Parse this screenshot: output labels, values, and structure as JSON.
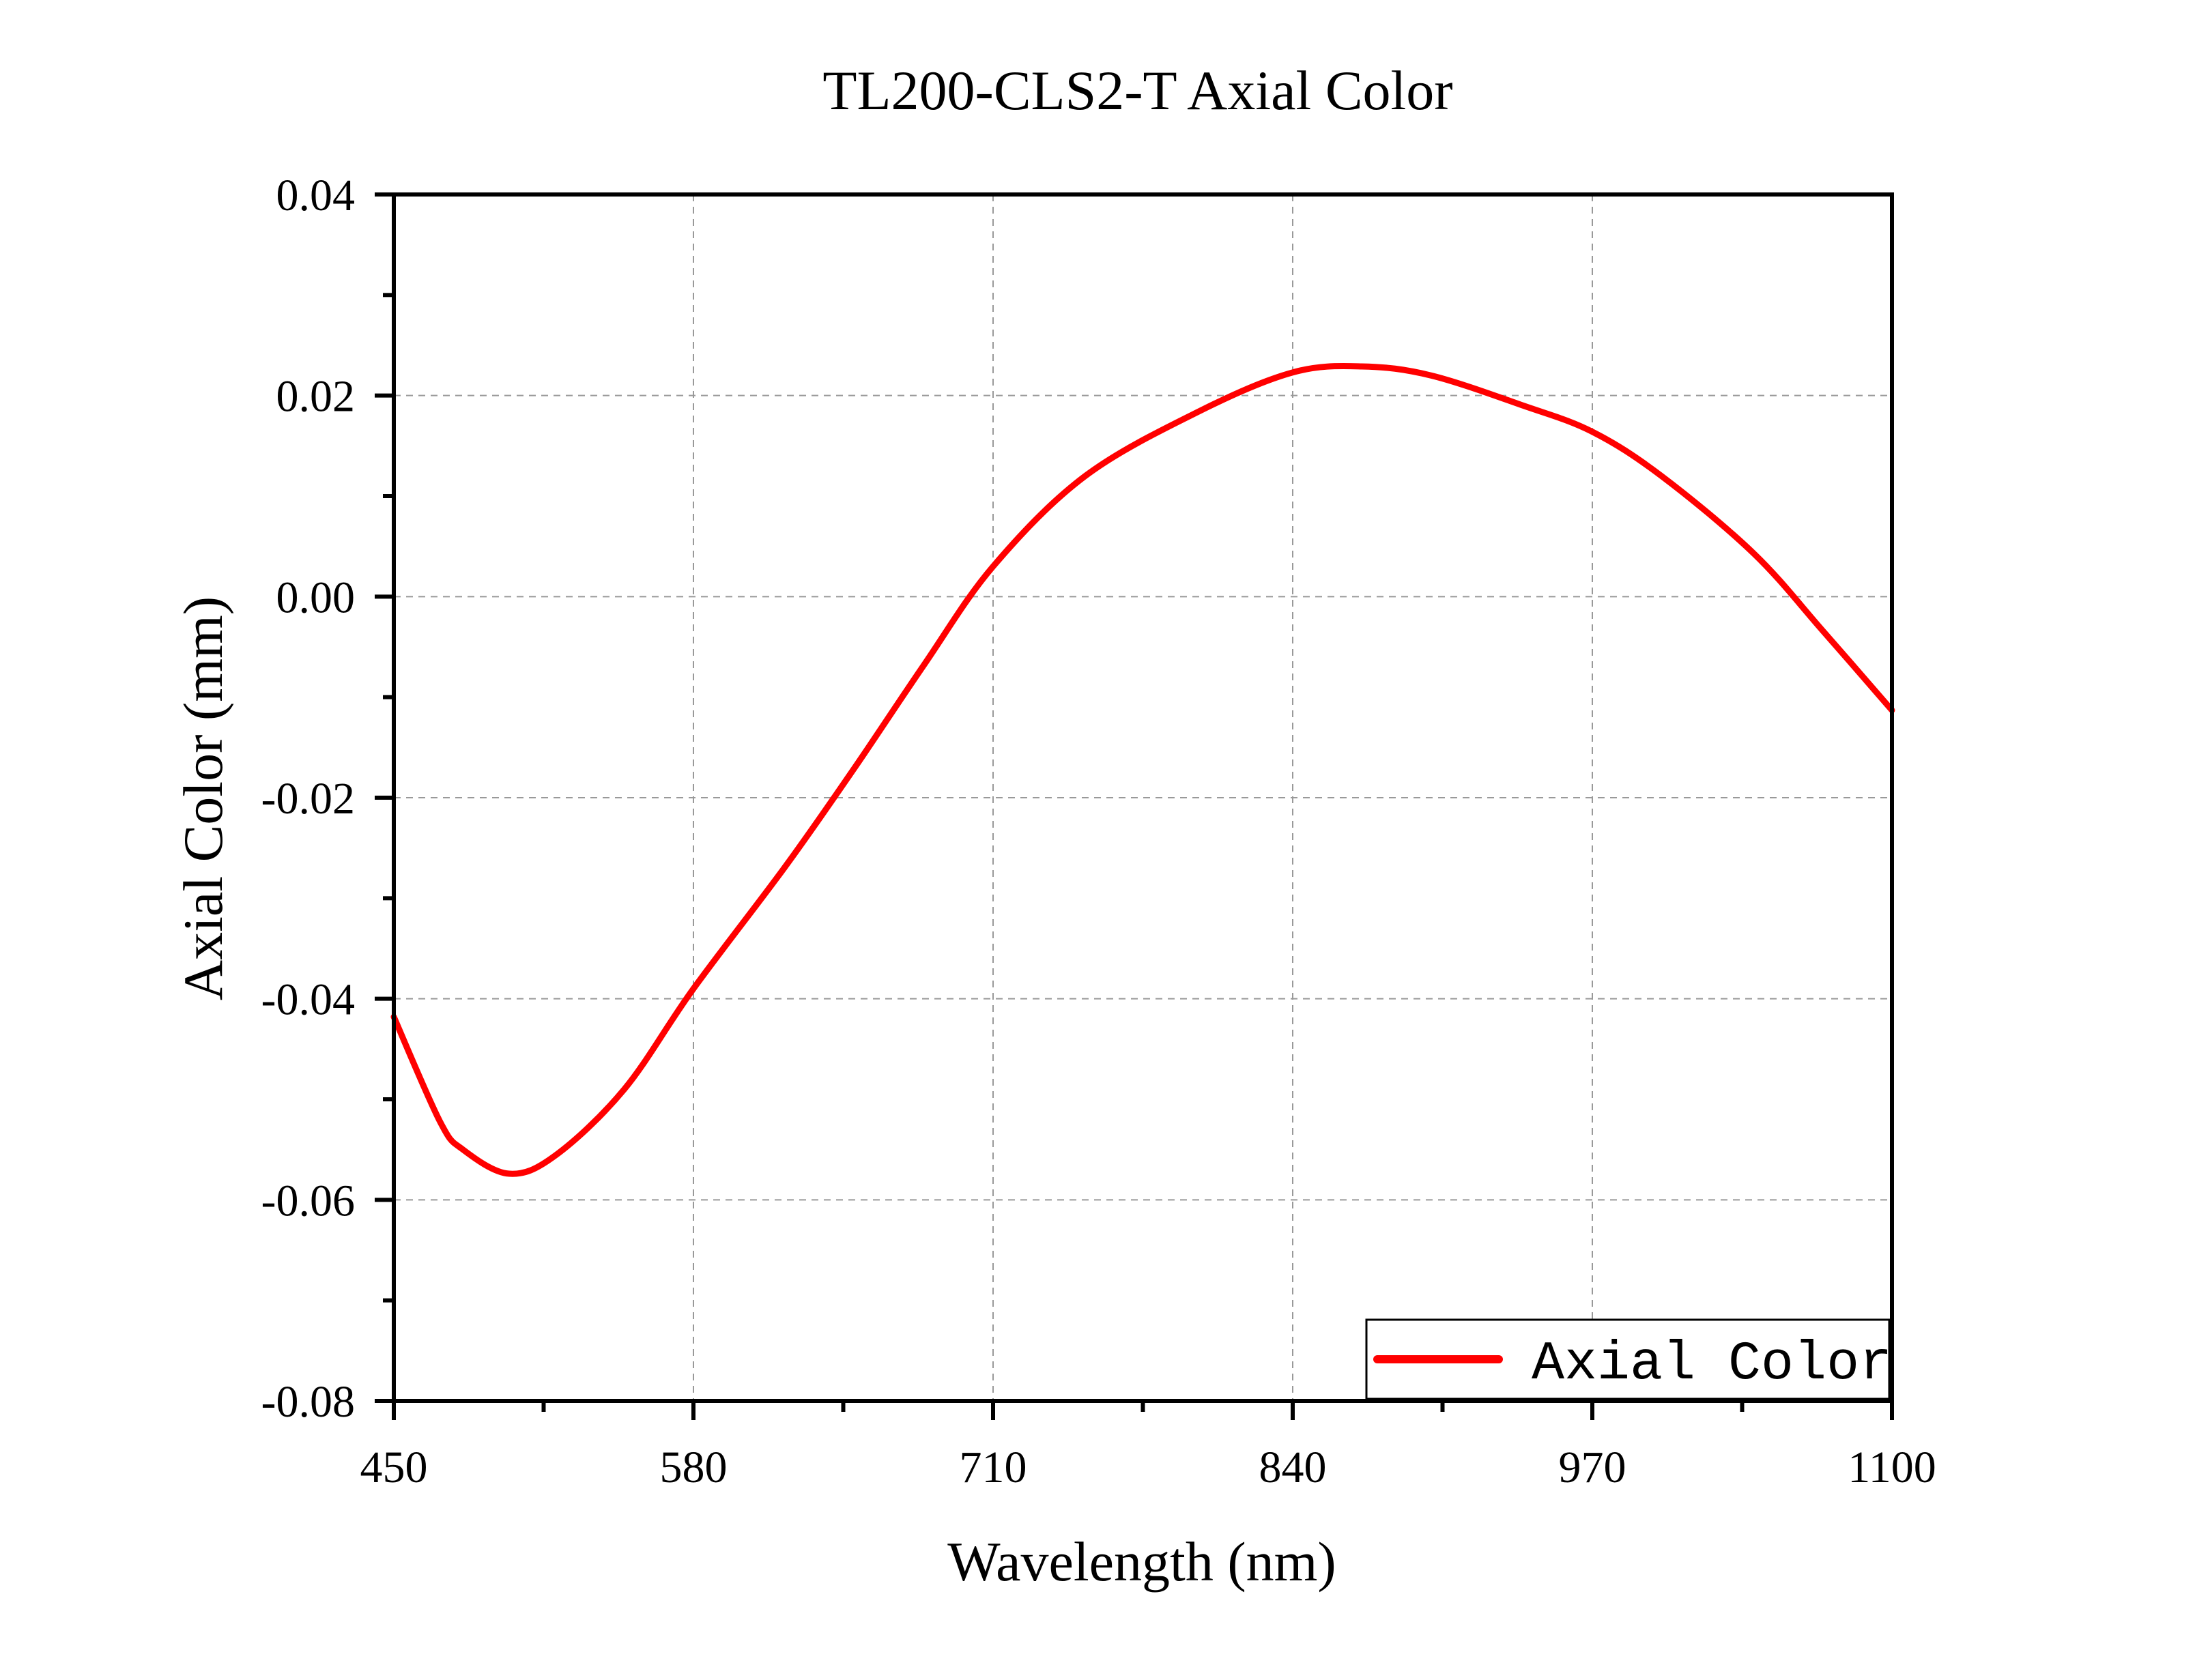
{
  "chart_data": {
    "type": "line",
    "title": "TL200-CLS2-T Axial Color",
    "xlabel": "Wavelength (nm)",
    "ylabel": "Axial Color (mm)",
    "xlim": [
      450,
      1100
    ],
    "ylim": [
      -0.08,
      0.04
    ],
    "xticks": [
      "450",
      "580",
      "710",
      "840",
      "970",
      "1100"
    ],
    "yticks": [
      "-0.08",
      "-0.06",
      "-0.04",
      "-0.02",
      "0.00",
      "0.02",
      "0.04"
    ],
    "grid": true,
    "legend": {
      "position": "bottom-right",
      "entries": [
        "Axial Color"
      ]
    },
    "series": [
      {
        "name": "Axial Color",
        "color": "#ff0000",
        "x": [
          450,
          470,
          480,
          500,
          520,
          550,
          580,
          620,
          650,
          680,
          710,
          750,
          800,
          840,
          870,
          900,
          940,
          970,
          1000,
          1040,
          1070,
          1100
        ],
        "y": [
          -0.0418,
          -0.0522,
          -0.055,
          -0.0574,
          -0.0556,
          -0.049,
          -0.039,
          -0.0268,
          -0.017,
          -0.0068,
          0.003,
          0.012,
          0.0185,
          0.0223,
          0.0229,
          0.022,
          0.019,
          0.0164,
          0.012,
          0.0043,
          -0.0034,
          -0.0113
        ]
      }
    ]
  }
}
